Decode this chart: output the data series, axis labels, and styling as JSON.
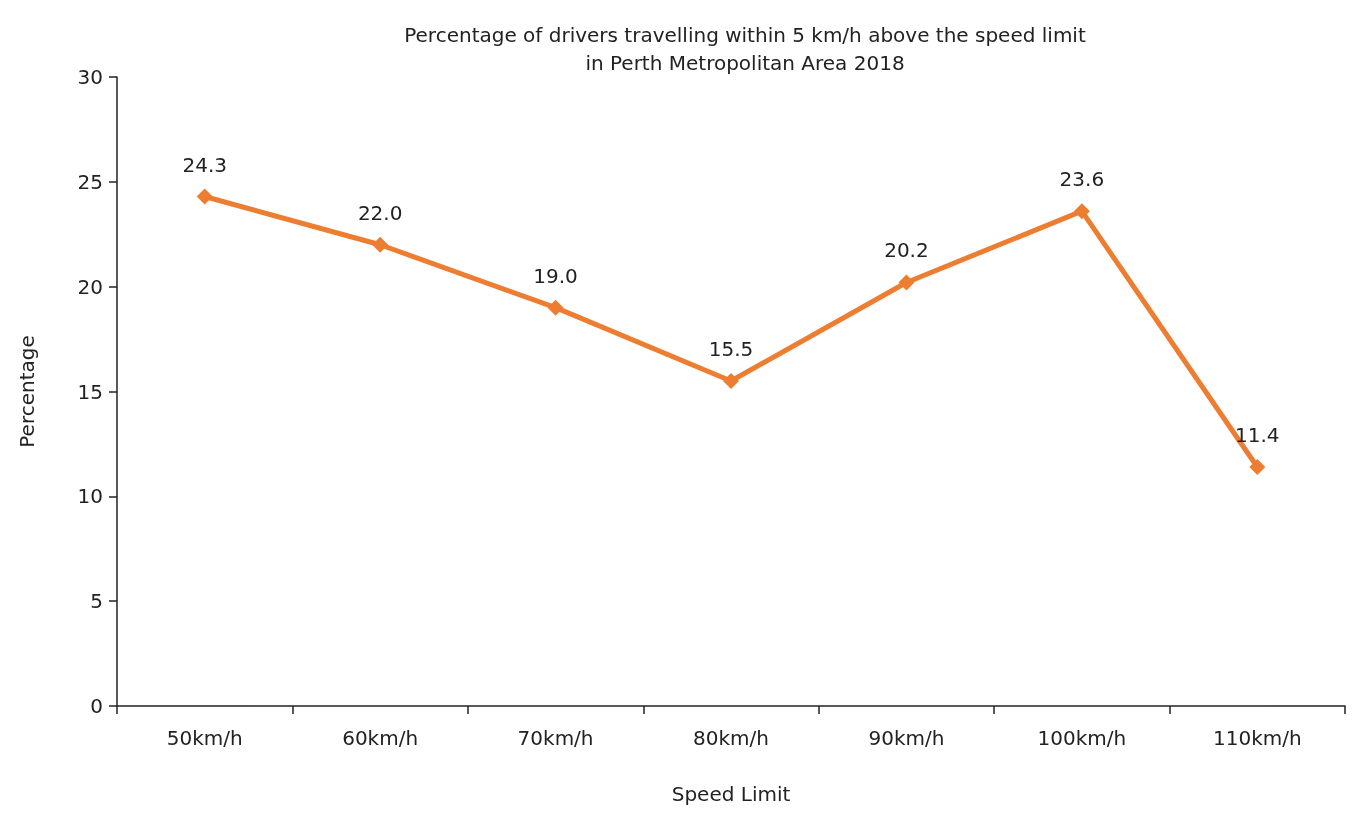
{
  "chart_data": {
    "type": "line",
    "title": "Percentage of drivers travelling within 5 km/h above the speed limit\nin Perth Metropolitan Area 2018",
    "xlabel": "Speed Limit",
    "ylabel": "Percentage",
    "categories": [
      "50km/h",
      "60km/h",
      "70km/h",
      "80km/h",
      "90km/h",
      "100km/h",
      "110km/h"
    ],
    "series": [
      {
        "color": "#ed7d31",
        "values": [
          24.3,
          22.0,
          19.0,
          15.5,
          20.2,
          23.6,
          11.4
        ],
        "value_labels": [
          "24.3",
          "22.0",
          "19.0",
          "15.5",
          "20.2",
          "23.6",
          "11.4"
        ]
      }
    ],
    "ylim": [
      0,
      30
    ],
    "yticks": [
      0,
      5,
      10,
      15,
      20,
      25,
      30
    ],
    "grid": false,
    "marker": "diamond",
    "line_style": "solid"
  }
}
